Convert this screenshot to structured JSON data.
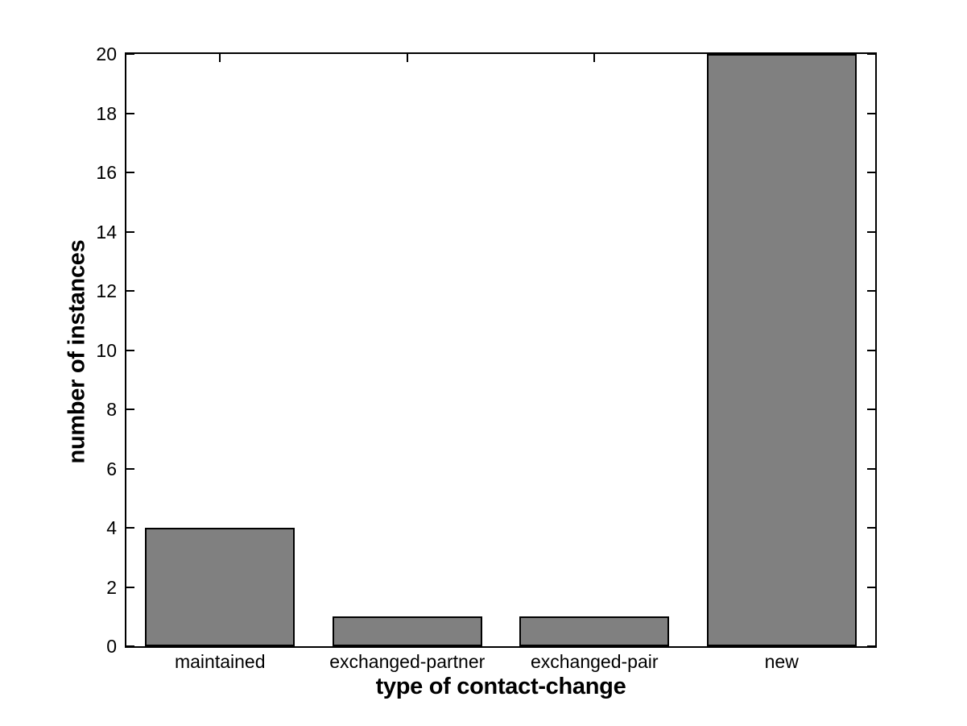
{
  "chart_data": {
    "type": "bar",
    "categories": [
      "maintained",
      "exchanged-partner",
      "exchanged-pair",
      "new"
    ],
    "values": [
      4,
      1,
      1,
      20
    ],
    "xlabel": "type of contact-change",
    "ylabel": "number of instances",
    "ylim": [
      0,
      20
    ],
    "yticks": [
      0,
      2,
      4,
      6,
      8,
      10,
      12,
      14,
      16,
      18,
      20
    ],
    "grid": false,
    "legend": "none",
    "bar_fill_color": "#808080",
    "bar_edge_color": "#000000",
    "axis_color": "#000000",
    "background_color": "#ffffff",
    "bar_width_fraction": 0.8
  }
}
